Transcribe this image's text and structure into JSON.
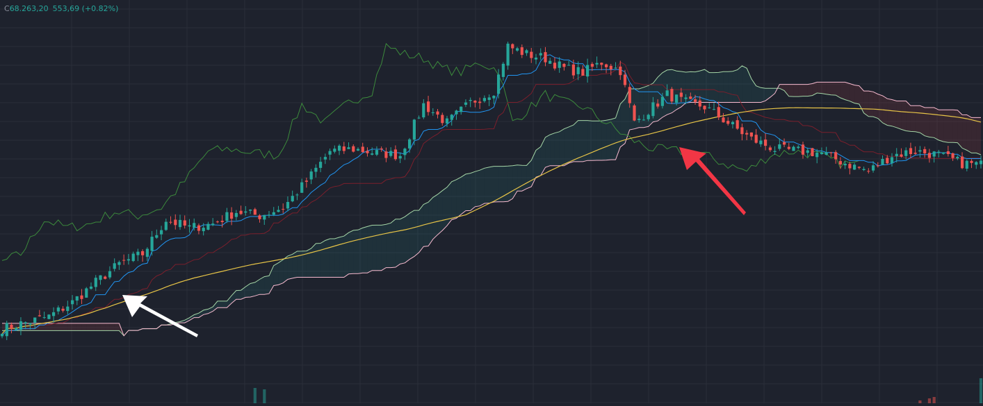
{
  "legend": {
    "close_label": "C",
    "close": "68.263,20",
    "change": "553,69",
    "change_pct": "(+0.82%)"
  },
  "colors": {
    "background": "#1e222d",
    "grid": "#2a2e39",
    "up": "#26a69a",
    "down": "#ef5350",
    "tenkan": "#2196f3",
    "kijun": "#7b1f2c",
    "span_a": "#a5d6a7",
    "span_b": "#f8bbd0",
    "cloud_bull": "#26a69a",
    "cloud_bear": "#ef5350",
    "chikou": "#3c8a3c",
    "ma": "#e8c547",
    "white_arrow": "#ffffff",
    "red_arrow": "#f23645"
  },
  "chart_data": {
    "type": "candlestick",
    "title": "",
    "indicators": [
      "Ichimoku Cloud",
      "Moving Average"
    ],
    "grid": true,
    "annotations": [
      {
        "type": "arrow",
        "color": "white",
        "points_to": "price crossing above cloud and moving average"
      },
      {
        "type": "arrow",
        "color": "red",
        "points_to": "price falling into cloud"
      }
    ],
    "anchors": [
      [
        0,
        61200
      ],
      [
        5,
        61350
      ],
      [
        10,
        61500
      ],
      [
        15,
        61850
      ],
      [
        20,
        62350
      ],
      [
        25,
        62800
      ],
      [
        30,
        63050
      ],
      [
        35,
        63900
      ],
      [
        40,
        63700
      ],
      [
        45,
        63800
      ],
      [
        50,
        64100
      ],
      [
        55,
        64000
      ],
      [
        60,
        64200
      ],
      [
        65,
        64850
      ],
      [
        70,
        65600
      ],
      [
        75,
        65650
      ],
      [
        80,
        65550
      ],
      [
        85,
        65500
      ],
      [
        90,
        66750
      ],
      [
        95,
        66300
      ],
      [
        100,
        66800
      ],
      [
        105,
        67100
      ],
      [
        108,
        68200
      ],
      [
        112,
        68000
      ],
      [
        116,
        67900
      ],
      [
        120,
        67650
      ],
      [
        124,
        67550
      ],
      [
        128,
        67800
      ],
      [
        132,
        67600
      ],
      [
        135,
        66300
      ],
      [
        138,
        66600
      ],
      [
        142,
        67000
      ],
      [
        146,
        66800
      ],
      [
        150,
        66700
      ],
      [
        155,
        66300
      ],
      [
        160,
        65900
      ],
      [
        165,
        65650
      ],
      [
        170,
        65600
      ],
      [
        175,
        65550
      ],
      [
        180,
        65300
      ],
      [
        185,
        65100
      ],
      [
        190,
        65500
      ],
      [
        195,
        65600
      ],
      [
        200,
        65500
      ],
      [
        205,
        65300
      ],
      [
        210,
        65250
      ]
    ],
    "candle_count": 210,
    "y_range": [
      60400,
      69000
    ]
  }
}
